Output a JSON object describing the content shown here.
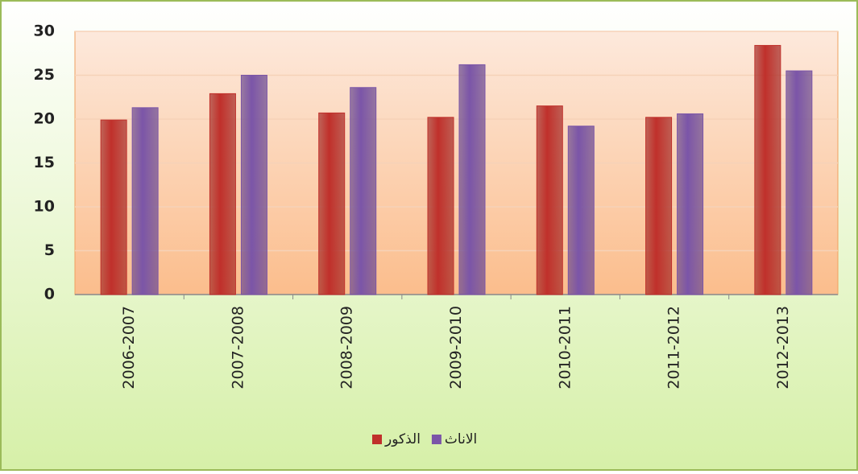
{
  "chart_data": {
    "type": "bar",
    "categories": [
      "2006-2007",
      "2007-2008",
      "2008-2009",
      "2009-2010",
      "2010-2011",
      "2011-2012",
      "2012-2013"
    ],
    "series": [
      {
        "name": "الذكور",
        "color": "#c0302b",
        "values": [
          19.9,
          22.9,
          20.7,
          20.2,
          21.5,
          20.2,
          28.4
        ]
      },
      {
        "name": "الاناث",
        "color": "#7b55a8",
        "values": [
          21.3,
          25.0,
          23.6,
          26.2,
          19.2,
          20.6,
          25.5
        ]
      }
    ],
    "ylim": [
      0,
      30
    ],
    "yticks": [
      0,
      5,
      10,
      15,
      20,
      25,
      30
    ],
    "grid": true,
    "legend": "bottom"
  }
}
